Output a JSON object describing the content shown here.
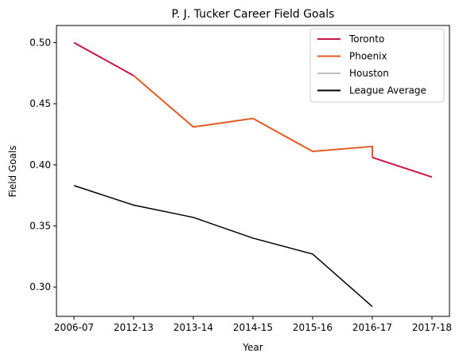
{
  "chart_data": {
    "type": "line",
    "title": "P. J. Tucker Career Field Goals",
    "xlabel": "Year",
    "ylabel": "Field Goals",
    "categories": [
      "2006-07",
      "2012-13",
      "2013-14",
      "2014-15",
      "2015-16",
      "2016-17",
      "2017-18"
    ],
    "y_ticks": [
      "0.30",
      "0.35",
      "0.40",
      "0.45",
      "0.50"
    ],
    "ylim": [
      0.276,
      0.514
    ],
    "grid": false,
    "legend_position": "top-right",
    "series": [
      {
        "name": "Toronto",
        "color": "#c8174a",
        "points": [
          {
            "x": "2006-07",
            "y": 0.5
          },
          {
            "x": "2012-13",
            "y": 0.473
          }
        ]
      },
      {
        "name": "Phoenix",
        "color": "#e05c24",
        "points": [
          {
            "x": "2012-13",
            "y": 0.473
          },
          {
            "x": "2013-14",
            "y": 0.431
          },
          {
            "x": "2014-15",
            "y": 0.438
          },
          {
            "x": "2015-16",
            "y": 0.411
          },
          {
            "x": "2016-17",
            "y": 0.415
          },
          {
            "x": "2016-17",
            "y": 0.406
          }
        ]
      },
      {
        "name": "Houston",
        "color": "#c0c0c0",
        "points": []
      },
      {
        "name": "",
        "color": "#c8174a",
        "points": [
          {
            "x": "2016-17",
            "y": 0.406
          },
          {
            "x": "2017-18",
            "y": 0.39
          }
        ]
      },
      {
        "name": "League Average",
        "color": "#000000",
        "points": [
          {
            "x": "2006-07",
            "y": 0.383
          },
          {
            "x": "2012-13",
            "y": 0.367
          },
          {
            "x": "2013-14",
            "y": 0.357
          },
          {
            "x": "2014-15",
            "y": 0.34
          },
          {
            "x": "2015-16",
            "y": 0.327
          },
          {
            "x": "2016-17",
            "y": 0.284
          }
        ]
      }
    ],
    "legend": [
      "Toronto",
      "Phoenix",
      "Houston",
      "League Average"
    ]
  }
}
